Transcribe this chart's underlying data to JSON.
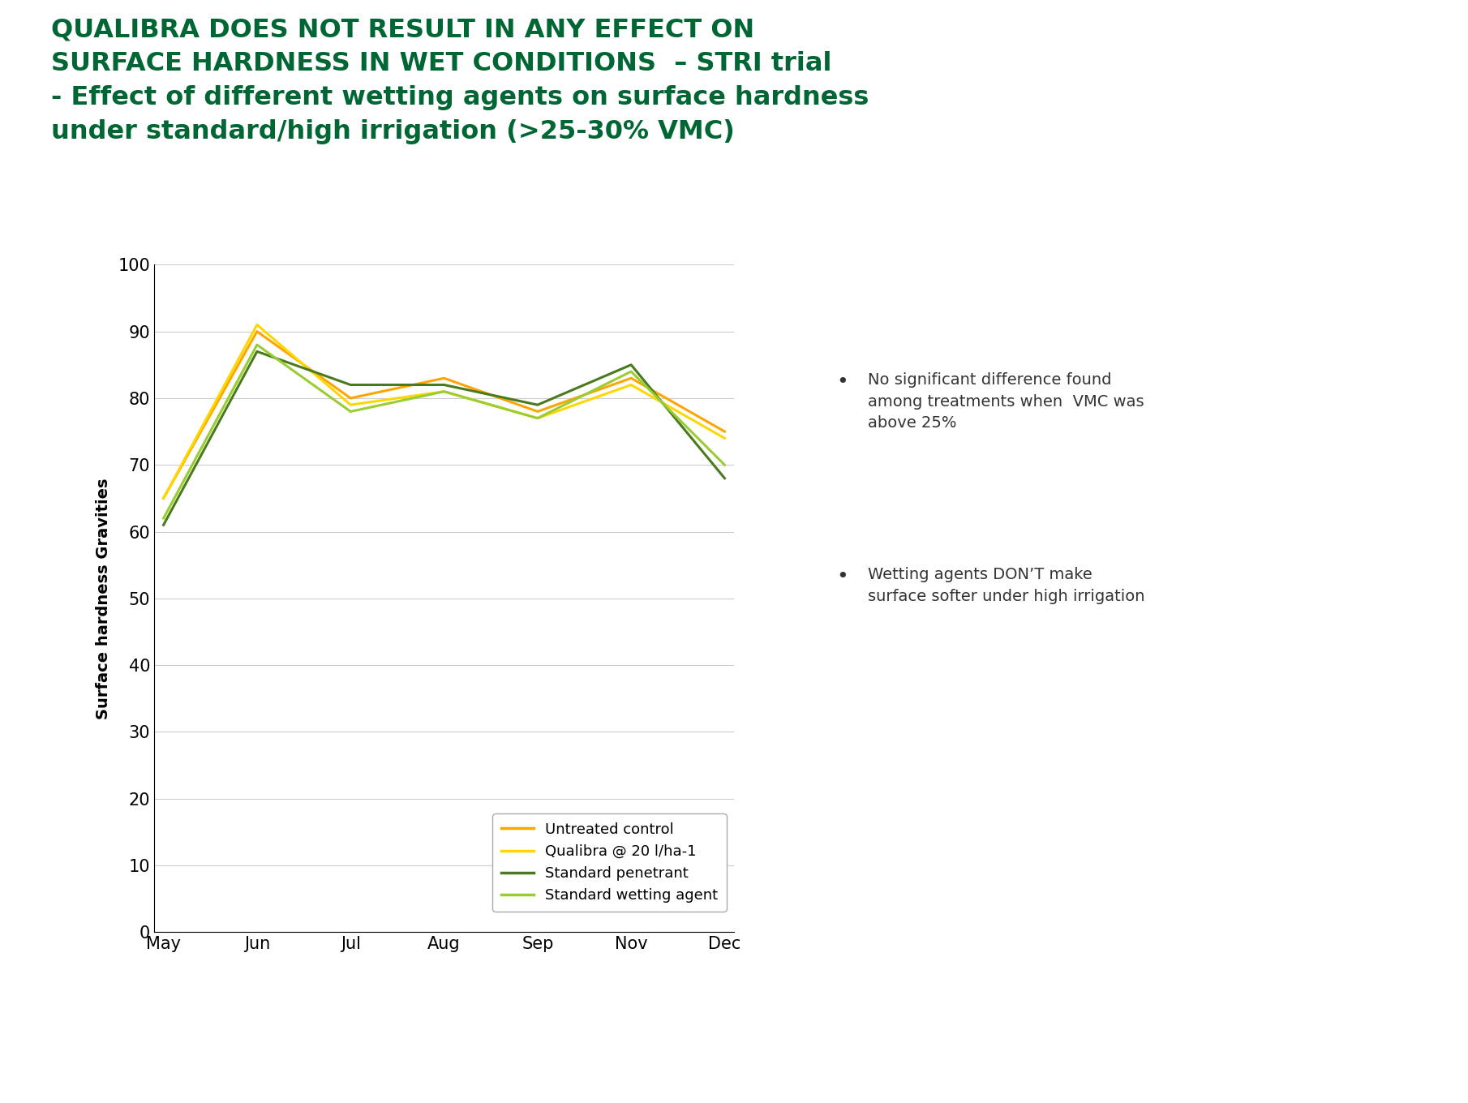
{
  "title_line1": "QUALIBRA DOES NOT RESULT IN ANY EFFECT ON",
  "title_line2": "SURFACE HARDNESS IN WET CONDITIONS  – STRI trial",
  "title_line3": "- Effect of different wetting agents on surface hardness",
  "title_line4": "under standard/high irrigation (>25-30% VMC)",
  "title_color": "#006633",
  "background_color": "#ffffff",
  "ylabel": "Surface hardness Gravities",
  "ylim": [
    0,
    100
  ],
  "yticks": [
    0,
    10,
    20,
    30,
    40,
    50,
    60,
    70,
    80,
    90,
    100
  ],
  "x_labels": [
    "May",
    "Jun",
    "Jul",
    "Aug",
    "Sep",
    "Nov",
    "Dec"
  ],
  "series": [
    {
      "label": "Untreated control",
      "color": "#FFA500",
      "values": [
        65,
        90,
        80,
        83,
        78,
        83,
        75
      ]
    },
    {
      "label": "Qualibra @ 20 l/ha-1",
      "color": "#FFD700",
      "values": [
        65,
        91,
        79,
        81,
        77,
        82,
        74
      ]
    },
    {
      "label": "Standard penetrant",
      "color": "#4a7a1e",
      "values": [
        61,
        87,
        82,
        82,
        79,
        85,
        68
      ]
    },
    {
      "label": "Standard wetting agent",
      "color": "#9acd32",
      "values": [
        62,
        88,
        78,
        81,
        77,
        84,
        70
      ]
    }
  ],
  "bullet_points": [
    "No significant difference found\namong treatments when  VMC was\nabove 25%",
    "Wetting agents DON’T make\nsurface softer under high irrigation"
  ],
  "bullet_color": "#333333",
  "footer_dark": "#2d6a27",
  "footer_light": "#7ab648",
  "syngenta_text_color": "#ffffff",
  "line_width": 2.2,
  "title_fontsize": 23,
  "ylabel_fontsize": 14,
  "tick_fontsize": 15,
  "legend_fontsize": 13,
  "bullet_fontsize": 14,
  "bullet_dot_fontsize": 18
}
